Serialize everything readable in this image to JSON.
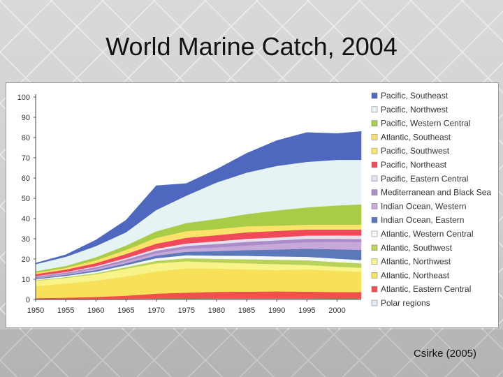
{
  "slide": {
    "title": "World Marine Catch, 2004",
    "credit": "Csirke (2005)"
  },
  "chart_data": {
    "type": "area",
    "stacked": true,
    "x": [
      1950,
      1955,
      1960,
      1965,
      1970,
      1975,
      1980,
      1985,
      1990,
      1995,
      2000,
      2004
    ],
    "xticks": [
      "1950",
      "1955",
      "1960",
      "1965",
      "1970",
      "1975",
      "1980",
      "1985",
      "1990",
      "1995",
      "2000"
    ],
    "yticks": [
      "0",
      "10",
      "20",
      "30",
      "40",
      "50",
      "60",
      "70",
      "80",
      "90",
      "100"
    ],
    "ylim": [
      0,
      100
    ],
    "xlim": [
      1950,
      2004
    ],
    "grid": false,
    "legend_position": "right",
    "series": [
      {
        "name": "Polar regions",
        "color": "#dfe9f2",
        "values": [
          0.2,
          0.2,
          0.3,
          0.3,
          0.4,
          0.4,
          0.5,
          0.5,
          0.5,
          0.5,
          0.4,
          0.4
        ]
      },
      {
        "name": "Atlantic, Eastern Central",
        "color": "#f0504a",
        "values": [
          0.5,
          0.7,
          1.0,
          1.6,
          2.5,
          3.0,
          3.3,
          3.4,
          3.5,
          3.4,
          3.3,
          3.3
        ]
      },
      {
        "name": "Atlantic, Northeast",
        "color": "#f7e15a",
        "values": [
          6.0,
          7.0,
          8.0,
          9.5,
          11.0,
          12.0,
          11.5,
          11.0,
          10.5,
          11.0,
          10.5,
          10.0
        ]
      },
      {
        "name": "Atlantic, Northwest",
        "color": "#f8f48a",
        "values": [
          2.5,
          2.8,
          3.2,
          3.8,
          4.0,
          3.5,
          3.0,
          3.0,
          3.0,
          2.2,
          2.0,
          2.0
        ]
      },
      {
        "name": "Atlantic, Southwest",
        "color": "#b9d25a",
        "values": [
          0.3,
          0.4,
          0.5,
          0.8,
          1.2,
          1.5,
          1.8,
          2.0,
          2.2,
          2.3,
          2.3,
          2.2
        ]
      },
      {
        "name": "Atlantic, Western Central",
        "color": "#f4f9fb",
        "values": [
          0.5,
          0.6,
          0.8,
          1.0,
          1.3,
          1.5,
          1.6,
          1.7,
          1.6,
          1.7,
          1.7,
          1.6
        ]
      },
      {
        "name": "Indian Ocean, Eastern",
        "color": "#5b78b8",
        "values": [
          0.4,
          0.5,
          0.7,
          0.9,
          1.3,
          1.7,
          2.2,
          2.8,
          3.4,
          4.0,
          4.6,
          5.0
        ]
      },
      {
        "name": "Indian Ocean, Western",
        "color": "#c6a9d8",
        "values": [
          0.4,
          0.5,
          0.7,
          0.9,
          1.2,
          1.5,
          1.9,
          2.3,
          2.9,
          3.3,
          3.7,
          3.9
        ]
      },
      {
        "name": "Mediterranean and Black Sea",
        "color": "#a98cc8",
        "values": [
          0.6,
          0.6,
          0.8,
          1.0,
          1.2,
          1.4,
          1.6,
          1.8,
          1.6,
          1.6,
          1.5,
          1.5
        ]
      },
      {
        "name": "Pacific, Eastern Central",
        "color": "#e8dfee",
        "values": [
          0.2,
          0.3,
          0.5,
          0.7,
          1.0,
          1.2,
          1.4,
          1.5,
          1.5,
          1.6,
          1.7,
          1.7
        ]
      },
      {
        "name": "Pacific, Northeast",
        "color": "#f04a5a",
        "values": [
          1.0,
          1.2,
          1.5,
          2.0,
          2.5,
          2.8,
          3.0,
          3.2,
          3.2,
          3.0,
          2.9,
          3.0
        ]
      },
      {
        "name": "Pacific, Southwest",
        "color": "#f7e86a",
        "values": [
          0.1,
          0.1,
          0.2,
          0.3,
          0.4,
          0.5,
          0.6,
          0.7,
          0.8,
          0.8,
          0.8,
          0.8
        ]
      },
      {
        "name": "Atlantic, Southeast",
        "color": "#fbe26a",
        "values": [
          0.5,
          0.7,
          1.2,
          1.7,
          2.5,
          2.8,
          2.4,
          2.3,
          1.8,
          1.6,
          1.6,
          1.6
        ]
      },
      {
        "name": "Pacific, Western Central",
        "color": "#a8cc48",
        "values": [
          0.8,
          1.0,
          1.5,
          2.2,
          3.2,
          4.0,
          5.0,
          6.0,
          7.5,
          8.5,
          9.5,
          10.0
        ]
      },
      {
        "name": "Pacific, Northwest",
        "color": "#e6f2f4",
        "values": [
          3.5,
          4.5,
          5.5,
          6.5,
          10.5,
          13.5,
          18.0,
          20.5,
          22.0,
          22.5,
          22.5,
          22.0
        ]
      },
      {
        "name": "Pacific, Southeast",
        "color": "#4e67bf",
        "values": [
          0.5,
          1.0,
          3.0,
          6.0,
          12.0,
          6.0,
          6.5,
          9.5,
          12.5,
          14.5,
          13.0,
          14.0
        ]
      }
    ]
  }
}
